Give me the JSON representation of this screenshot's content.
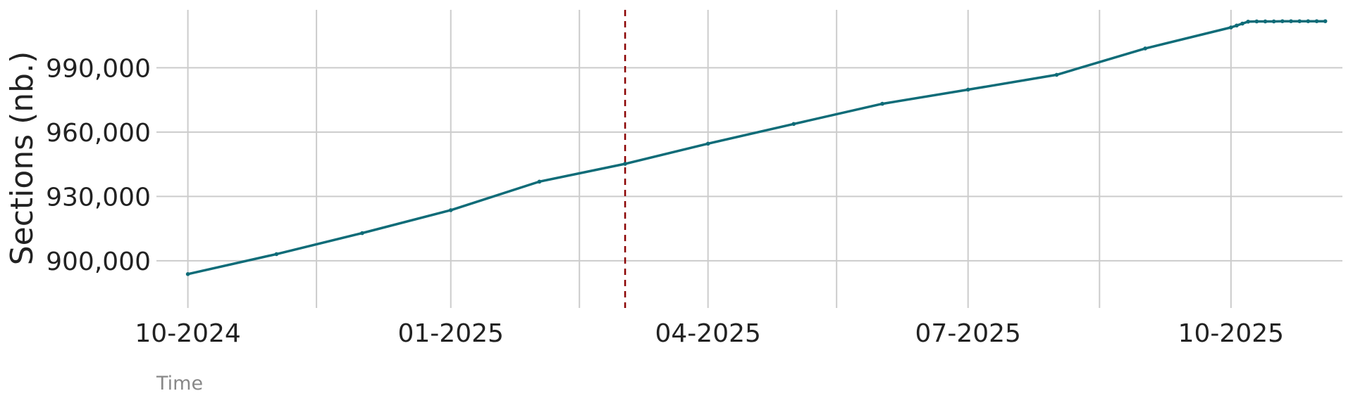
{
  "chart_data": {
    "type": "line",
    "title": "",
    "xlabel": "Time",
    "ylabel": "Sections (nb.)",
    "x_range": [
      "2024-09-20",
      "2025-11-09"
    ],
    "ylim": [
      878000,
      1017000
    ],
    "y_ticks": [
      900000,
      930000,
      960000,
      990000
    ],
    "y_tick_labels": [
      "900,000",
      "930,000",
      "960,000",
      "990,000"
    ],
    "x_major_ticks": [
      "2024-10-01",
      "2025-01-01",
      "2025-04-01",
      "2025-07-01",
      "2025-10-01"
    ],
    "x_major_tick_labels": [
      "10-2024",
      "01-2025",
      "04-2025",
      "07-2025",
      "10-2025"
    ],
    "x_minor_ticks": [
      "2024-11-15",
      "2025-02-15",
      "2025-05-16",
      "2025-08-16"
    ],
    "grid": true,
    "reference_line": {
      "x": "2025-03-03",
      "color": "#8b0000",
      "style": "dashed"
    },
    "series": [
      {
        "color": "#0f6c78",
        "x": [
          "2024-10-01",
          "2024-11-01",
          "2024-12-01",
          "2025-01-01",
          "2025-02-01",
          "2025-03-03",
          "2025-04-01",
          "2025-05-01",
          "2025-06-01",
          "2025-07-01",
          "2025-08-01",
          "2025-09-01",
          "2025-10-01",
          "2025-10-03",
          "2025-10-05",
          "2025-10-07",
          "2025-10-10",
          "2025-10-13",
          "2025-10-16",
          "2025-10-19",
          "2025-10-22",
          "2025-10-25",
          "2025-10-28",
          "2025-10-31",
          "2025-11-03"
        ],
        "y": [
          893800,
          903100,
          912900,
          923600,
          936900,
          945200,
          954600,
          963800,
          973200,
          979800,
          986700,
          999000,
          1008800,
          1009700,
          1010600,
          1011500,
          1011600,
          1011600,
          1011600,
          1011700,
          1011700,
          1011700,
          1011700,
          1011700,
          1011700
        ]
      }
    ]
  }
}
